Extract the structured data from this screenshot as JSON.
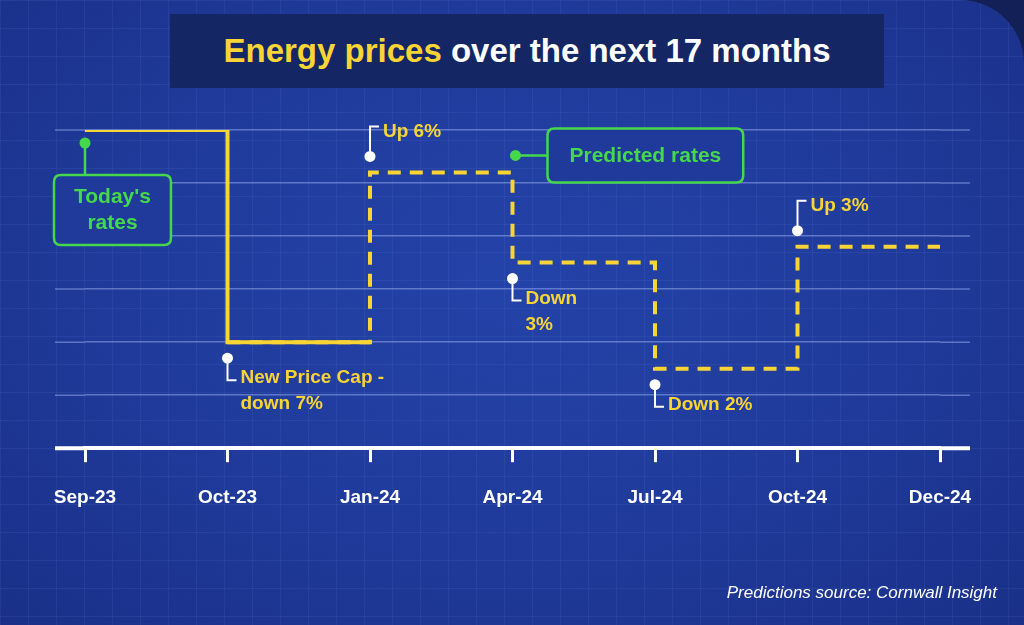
{
  "chart_data": {
    "type": "line",
    "title": "Energy prices over the next 17 months",
    "source": "Predictions source: Cornwall Insight",
    "categories": [
      "Sep-23",
      "Oct-23",
      "Jan-24",
      "Apr-24",
      "Jul-24",
      "Oct-24",
      "Dec-24"
    ],
    "series": [
      {
        "name": "Today's rates",
        "color": "#f9d435",
        "line_style": "solid",
        "values": [
          6,
          2,
          2,
          null,
          null,
          null,
          null
        ]
      },
      {
        "name": "Predicted rates",
        "color": "#f9d435",
        "line_style": "dashed",
        "values": [
          null,
          2,
          5.2,
          3.5,
          1.5,
          3.8,
          3.8
        ]
      }
    ],
    "annotations": [
      [
        "New Price Cap -",
        "down 7%"
      ],
      [
        "Up 6%"
      ],
      [
        "Down",
        "3%"
      ],
      [
        "Down 2%"
      ],
      [
        "Up 3%"
      ]
    ],
    "ylim": [
      0,
      6
    ],
    "yticks": [
      0,
      1,
      2,
      3,
      4,
      5,
      6
    ],
    "grid": true,
    "tick_labels": "x"
  }
}
